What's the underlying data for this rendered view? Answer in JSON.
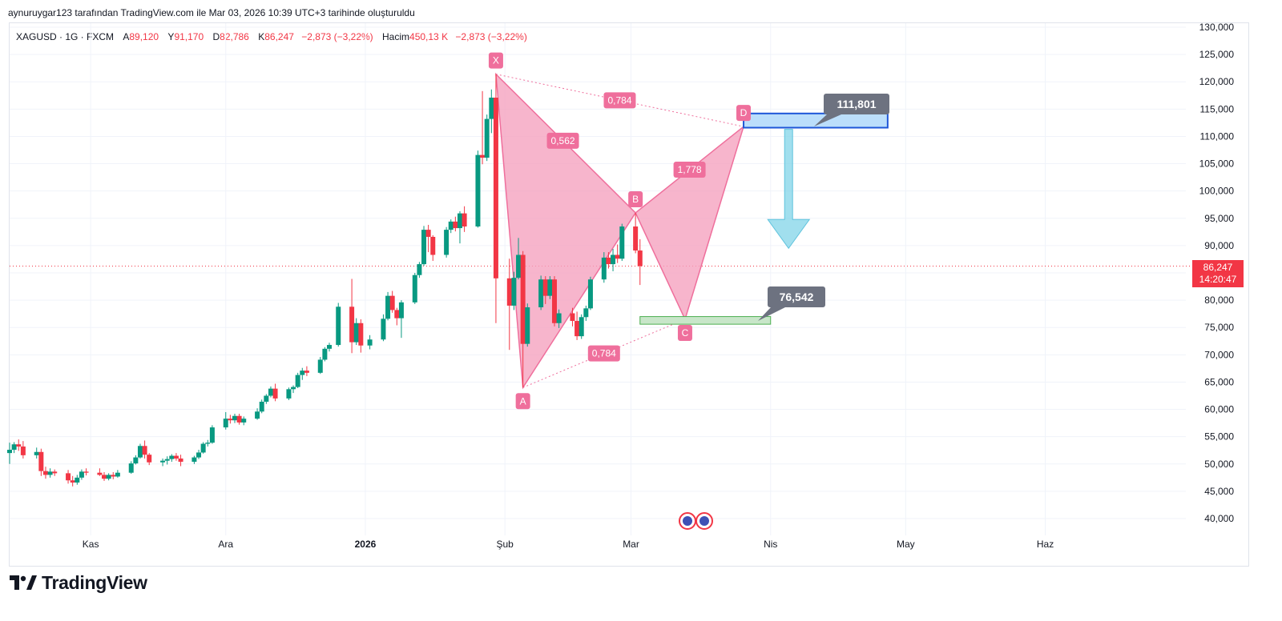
{
  "caption": "aynuruygar123 tarafından TradingView.com ile Mar 03, 2026 10:39 UTC+3 tarihinde oluşturuldu",
  "legend": {
    "symbol": "XAGUSD · 1G · FXCM",
    "a_label": "A",
    "a_value": "89,120",
    "y_label": "Y",
    "y_value": "91,170",
    "d_label": "D",
    "d_value": "82,786",
    "k_label": "K",
    "k_value": "86,247",
    "change": "−2,873 (−3,22%)",
    "volume_label": "Hacim",
    "volume_value": "450,13 K",
    "volume_change": "−2,873 (−3,22%)"
  },
  "price_badge": {
    "price": "86,247",
    "countdown": "14:20:47"
  },
  "brand": {
    "name": "TradingView"
  },
  "colors": {
    "up": "#089981",
    "down": "#f23645",
    "pattern_fill": "#f5a3bf",
    "pattern_line": "#ef6f9c",
    "label_bg": "#ef6f9c",
    "callout_bg": "#6d7280",
    "buy_zone": "#c8e6c9",
    "sell_zone": "#bbdefb",
    "arrow": "#81d4e8"
  },
  "chart_data": {
    "type": "candlestick",
    "symbol": "XAGUSD",
    "interval": "1G",
    "y_axis": {
      "min": 40,
      "max": 130,
      "ticks": [
        40,
        45,
        50,
        55,
        60,
        65,
        70,
        75,
        80,
        85,
        90,
        95,
        100,
        105,
        110,
        115,
        120,
        125,
        130
      ],
      "tick_labels": [
        "40,000",
        "45,000",
        "50,000",
        "55,000",
        "60,000",
        "65,000",
        "70,000",
        "75,000",
        "80,000",
        "85,000",
        "90,000",
        "95,000",
        "100,000",
        "105,000",
        "110,000",
        "115,000",
        "120,000",
        "125,000",
        "130,000"
      ]
    },
    "x_axis": {
      "start": "2025-10-14",
      "end": "2026-07-04",
      "ticks": [
        {
          "date": "2025-11-01",
          "label": "Kas",
          "bold": false
        },
        {
          "date": "2025-12-01",
          "label": "Ara",
          "bold": false
        },
        {
          "date": "2026-01-01",
          "label": "2026",
          "bold": true
        },
        {
          "date": "2026-02-01",
          "label": "Şub",
          "bold": false
        },
        {
          "date": "2026-03-01",
          "label": "Mar",
          "bold": false
        },
        {
          "date": "2026-04-01",
          "label": "Nis",
          "bold": false
        },
        {
          "date": "2026-05-01",
          "label": "May",
          "bold": false
        },
        {
          "date": "2026-06-01",
          "label": "Haz",
          "bold": false
        }
      ]
    },
    "last_price": 86.247,
    "candles": [
      {
        "date": "2025-10-14",
        "o": 52.0,
        "h": 53.9,
        "l": 50.0,
        "c": 52.6
      },
      {
        "date": "2025-10-15",
        "o": 52.6,
        "h": 54.0,
        "l": 52.0,
        "c": 53.6
      },
      {
        "date": "2025-10-16",
        "o": 53.6,
        "h": 54.5,
        "l": 52.4,
        "c": 53.2
      },
      {
        "date": "2025-10-17",
        "o": 53.2,
        "h": 54.2,
        "l": 51.0,
        "c": 51.6
      },
      {
        "date": "2025-10-20",
        "o": 51.6,
        "h": 53.0,
        "l": 51.0,
        "c": 52.2
      },
      {
        "date": "2025-10-21",
        "o": 52.2,
        "h": 52.8,
        "l": 47.8,
        "c": 48.7
      },
      {
        "date": "2025-10-22",
        "o": 48.7,
        "h": 49.5,
        "l": 47.3,
        "c": 48.0
      },
      {
        "date": "2025-10-23",
        "o": 48.0,
        "h": 49.2,
        "l": 47.5,
        "c": 48.6
      },
      {
        "date": "2025-10-24",
        "o": 48.6,
        "h": 49.0,
        "l": 47.8,
        "c": 48.3
      },
      {
        "date": "2025-10-27",
        "o": 48.3,
        "h": 48.9,
        "l": 46.4,
        "c": 47.0
      },
      {
        "date": "2025-10-28",
        "o": 47.0,
        "h": 47.8,
        "l": 45.9,
        "c": 46.6
      },
      {
        "date": "2025-10-29",
        "o": 46.6,
        "h": 48.0,
        "l": 46.2,
        "c": 47.5
      },
      {
        "date": "2025-10-30",
        "o": 47.5,
        "h": 49.0,
        "l": 47.1,
        "c": 48.6
      },
      {
        "date": "2025-10-31",
        "o": 48.6,
        "h": 49.2,
        "l": 47.9,
        "c": 48.4
      },
      {
        "date": "2025-11-03",
        "o": 48.4,
        "h": 49.2,
        "l": 47.8,
        "c": 48.0
      },
      {
        "date": "2025-11-04",
        "o": 48.0,
        "h": 48.5,
        "l": 46.9,
        "c": 47.3
      },
      {
        "date": "2025-11-05",
        "o": 47.3,
        "h": 48.3,
        "l": 47.0,
        "c": 48.0
      },
      {
        "date": "2025-11-06",
        "o": 48.0,
        "h": 48.5,
        "l": 47.2,
        "c": 47.7
      },
      {
        "date": "2025-11-07",
        "o": 47.7,
        "h": 48.9,
        "l": 47.5,
        "c": 48.4
      },
      {
        "date": "2025-11-10",
        "o": 48.4,
        "h": 50.5,
        "l": 48.2,
        "c": 50.1
      },
      {
        "date": "2025-11-11",
        "o": 50.1,
        "h": 51.6,
        "l": 49.9,
        "c": 51.2
      },
      {
        "date": "2025-11-12",
        "o": 51.2,
        "h": 53.7,
        "l": 51.0,
        "c": 53.3
      },
      {
        "date": "2025-11-13",
        "o": 53.3,
        "h": 54.3,
        "l": 51.0,
        "c": 51.7
      },
      {
        "date": "2025-11-14",
        "o": 51.7,
        "h": 52.0,
        "l": 49.8,
        "c": 50.3
      },
      {
        "date": "2025-11-17",
        "o": 50.3,
        "h": 51.0,
        "l": 49.6,
        "c": 50.6
      },
      {
        "date": "2025-11-18",
        "o": 50.6,
        "h": 51.4,
        "l": 49.9,
        "c": 50.9
      },
      {
        "date": "2025-11-19",
        "o": 50.9,
        "h": 51.8,
        "l": 50.4,
        "c": 51.5
      },
      {
        "date": "2025-11-20",
        "o": 51.5,
        "h": 52.0,
        "l": 50.6,
        "c": 51.0
      },
      {
        "date": "2025-11-21",
        "o": 51.0,
        "h": 51.7,
        "l": 49.6,
        "c": 50.4
      },
      {
        "date": "2025-11-24",
        "o": 50.4,
        "h": 51.5,
        "l": 50.0,
        "c": 51.2
      },
      {
        "date": "2025-11-25",
        "o": 51.2,
        "h": 52.6,
        "l": 50.9,
        "c": 52.1
      },
      {
        "date": "2025-11-26",
        "o": 52.1,
        "h": 54.0,
        "l": 51.9,
        "c": 53.7
      },
      {
        "date": "2025-11-27",
        "o": 53.7,
        "h": 54.4,
        "l": 53.2,
        "c": 53.9
      },
      {
        "date": "2025-11-28",
        "o": 53.9,
        "h": 57.1,
        "l": 53.7,
        "c": 56.7
      },
      {
        "date": "2025-12-01",
        "o": 56.7,
        "h": 59.5,
        "l": 56.3,
        "c": 58.3
      },
      {
        "date": "2025-12-02",
        "o": 58.3,
        "h": 59.0,
        "l": 57.4,
        "c": 58.0
      },
      {
        "date": "2025-12-03",
        "o": 58.0,
        "h": 59.2,
        "l": 57.5,
        "c": 58.8
      },
      {
        "date": "2025-12-04",
        "o": 58.8,
        "h": 59.2,
        "l": 57.2,
        "c": 57.6
      },
      {
        "date": "2025-12-05",
        "o": 57.6,
        "h": 58.7,
        "l": 57.1,
        "c": 58.3
      },
      {
        "date": "2025-12-08",
        "o": 58.3,
        "h": 60.2,
        "l": 58.1,
        "c": 59.6
      },
      {
        "date": "2025-12-09",
        "o": 59.6,
        "h": 61.8,
        "l": 59.3,
        "c": 61.4
      },
      {
        "date": "2025-12-10",
        "o": 61.4,
        "h": 62.8,
        "l": 61.0,
        "c": 62.5
      },
      {
        "date": "2025-12-11",
        "o": 62.5,
        "h": 64.2,
        "l": 62.2,
        "c": 63.8
      },
      {
        "date": "2025-12-12",
        "o": 63.8,
        "h": 64.7,
        "l": 61.5,
        "c": 62.0
      },
      {
        "date": "2025-12-15",
        "o": 62.0,
        "h": 64.0,
        "l": 61.7,
        "c": 63.7
      },
      {
        "date": "2025-12-16",
        "o": 63.7,
        "h": 64.4,
        "l": 63.0,
        "c": 64.1
      },
      {
        "date": "2025-12-17",
        "o": 64.1,
        "h": 66.7,
        "l": 63.9,
        "c": 66.3
      },
      {
        "date": "2025-12-18",
        "o": 66.3,
        "h": 67.6,
        "l": 65.4,
        "c": 67.1
      },
      {
        "date": "2025-12-19",
        "o": 67.1,
        "h": 67.9,
        "l": 66.1,
        "c": 66.7
      },
      {
        "date": "2025-12-22",
        "o": 66.7,
        "h": 69.6,
        "l": 66.5,
        "c": 69.1
      },
      {
        "date": "2025-12-23",
        "o": 69.1,
        "h": 71.4,
        "l": 68.8,
        "c": 71.1
      },
      {
        "date": "2025-12-24",
        "o": 71.1,
        "h": 72.2,
        "l": 70.6,
        "c": 71.8
      },
      {
        "date": "2025-12-26",
        "o": 71.8,
        "h": 79.5,
        "l": 71.5,
        "c": 78.8
      },
      {
        "date": "2025-12-29",
        "o": 78.8,
        "h": 83.9,
        "l": 70.3,
        "c": 72.3
      },
      {
        "date": "2025-12-30",
        "o": 72.3,
        "h": 76.7,
        "l": 71.8,
        "c": 75.8
      },
      {
        "date": "2025-12-31",
        "o": 75.8,
        "h": 76.5,
        "l": 70.4,
        "c": 71.7
      },
      {
        "date": "2026-01-02",
        "o": 71.7,
        "h": 73.6,
        "l": 71.0,
        "c": 72.8
      },
      {
        "date": "2026-01-05",
        "o": 72.8,
        "h": 77.4,
        "l": 72.5,
        "c": 76.6
      },
      {
        "date": "2026-01-06",
        "o": 76.6,
        "h": 81.5,
        "l": 76.3,
        "c": 80.8
      },
      {
        "date": "2026-01-07",
        "o": 80.8,
        "h": 81.7,
        "l": 77.7,
        "c": 78.2
      },
      {
        "date": "2026-01-08",
        "o": 78.2,
        "h": 78.6,
        "l": 75.4,
        "c": 76.7
      },
      {
        "date": "2026-01-09",
        "o": 76.7,
        "h": 80.0,
        "l": 73.1,
        "c": 79.6
      },
      {
        "date": "2026-01-12",
        "o": 79.6,
        "h": 85.0,
        "l": 79.3,
        "c": 84.6
      },
      {
        "date": "2026-01-13",
        "o": 84.6,
        "h": 87.0,
        "l": 84.1,
        "c": 86.6
      },
      {
        "date": "2026-01-14",
        "o": 86.6,
        "h": 93.6,
        "l": 86.3,
        "c": 92.9
      },
      {
        "date": "2026-01-15",
        "o": 92.9,
        "h": 93.8,
        "l": 88.8,
        "c": 91.6
      },
      {
        "date": "2026-01-16",
        "o": 91.6,
        "h": 91.9,
        "l": 87.2,
        "c": 88.3
      },
      {
        "date": "2026-01-19",
        "o": 88.3,
        "h": 93.4,
        "l": 87.8,
        "c": 92.9
      },
      {
        "date": "2026-01-20",
        "o": 92.9,
        "h": 94.8,
        "l": 92.3,
        "c": 94.4
      },
      {
        "date": "2026-01-21",
        "o": 94.4,
        "h": 95.3,
        "l": 92.6,
        "c": 93.2
      },
      {
        "date": "2026-01-22",
        "o": 93.2,
        "h": 96.3,
        "l": 90.4,
        "c": 95.9
      },
      {
        "date": "2026-01-23",
        "o": 95.9,
        "h": 97.2,
        "l": 92.5,
        "c": 93.5
      },
      {
        "date": "2026-01-26",
        "o": 93.5,
        "h": 107.4,
        "l": 93.3,
        "c": 106.6
      },
      {
        "date": "2026-01-27",
        "o": 106.6,
        "h": 118.3,
        "l": 104.9,
        "c": 106.1
      },
      {
        "date": "2026-01-28",
        "o": 106.1,
        "h": 114.0,
        "l": 105.5,
        "c": 113.2
      },
      {
        "date": "2026-01-29",
        "o": 113.2,
        "h": 118.6,
        "l": 110.6,
        "c": 117.1
      },
      {
        "date": "2026-01-30",
        "o": 117.1,
        "h": 121.4,
        "l": 75.8,
        "c": 84.0
      },
      {
        "date": "2026-02-02",
        "o": 84.0,
        "h": 87.6,
        "l": 70.9,
        "c": 79.0
      },
      {
        "date": "2026-02-03",
        "o": 79.0,
        "h": 85.2,
        "l": 78.2,
        "c": 84.1
      },
      {
        "date": "2026-02-04",
        "o": 84.1,
        "h": 91.4,
        "l": 83.8,
        "c": 88.3
      },
      {
        "date": "2026-02-05",
        "o": 88.3,
        "h": 89.0,
        "l": 64.0,
        "c": 72.0
      },
      {
        "date": "2026-02-06",
        "o": 72.0,
        "h": 79.4,
        "l": 71.5,
        "c": 78.7
      },
      {
        "date": "2026-02-09",
        "o": 78.7,
        "h": 84.5,
        "l": 78.2,
        "c": 83.8
      },
      {
        "date": "2026-02-10",
        "o": 83.8,
        "h": 84.4,
        "l": 79.3,
        "c": 80.8
      },
      {
        "date": "2026-02-11",
        "o": 80.8,
        "h": 84.4,
        "l": 80.2,
        "c": 83.8
      },
      {
        "date": "2026-02-12",
        "o": 83.8,
        "h": 84.4,
        "l": 75.2,
        "c": 75.8
      },
      {
        "date": "2026-02-13",
        "o": 75.8,
        "h": 78.3,
        "l": 74.9,
        "c": 77.6
      },
      {
        "date": "2026-02-16",
        "o": 77.6,
        "h": 78.6,
        "l": 75.2,
        "c": 76.2
      },
      {
        "date": "2026-02-17",
        "o": 76.2,
        "h": 77.9,
        "l": 72.7,
        "c": 73.4
      },
      {
        "date": "2026-02-18",
        "o": 73.4,
        "h": 77.4,
        "l": 72.9,
        "c": 76.9
      },
      {
        "date": "2026-02-19",
        "o": 76.9,
        "h": 79.0,
        "l": 76.2,
        "c": 78.5
      },
      {
        "date": "2026-02-20",
        "o": 78.5,
        "h": 84.3,
        "l": 78.2,
        "c": 83.8
      },
      {
        "date": "2026-02-23",
        "o": 83.8,
        "h": 88.8,
        "l": 83.2,
        "c": 87.8
      },
      {
        "date": "2026-02-24",
        "o": 87.8,
        "h": 88.8,
        "l": 85.8,
        "c": 86.6
      },
      {
        "date": "2026-02-25",
        "o": 86.6,
        "h": 89.4,
        "l": 85.3,
        "c": 88.3
      },
      {
        "date": "2026-02-26",
        "o": 88.3,
        "h": 90.2,
        "l": 86.8,
        "c": 87.6
      },
      {
        "date": "2026-02-27",
        "o": 87.6,
        "h": 94.0,
        "l": 87.2,
        "c": 93.5
      },
      {
        "date": "2026-03-02",
        "o": 93.5,
        "h": 96.0,
        "l": 88.6,
        "c": 89.1
      },
      {
        "date": "2026-03-03",
        "o": 89.1,
        "h": 91.17,
        "l": 82.786,
        "c": 86.247
      }
    ],
    "pattern": {
      "name": "XABCD",
      "points": [
        {
          "label": "X",
          "date": "2026-01-30",
          "price": 121.4
        },
        {
          "label": "A",
          "date": "2026-02-05",
          "price": 64.0
        },
        {
          "label": "B",
          "date": "2026-03-02",
          "price": 96.0
        },
        {
          "label": "C",
          "date": "2026-03-13",
          "price": 76.5
        },
        {
          "label": "D",
          "date": "2026-03-26",
          "price": 111.8
        }
      ],
      "ratios": [
        {
          "label": "0,562",
          "between": "X-B"
        },
        {
          "label": "0,784",
          "between": "A-C"
        },
        {
          "label": "1,778",
          "between": "B-D"
        },
        {
          "label": "0,784",
          "between": "X-D"
        }
      ]
    },
    "zones": [
      {
        "name": "buy-zone",
        "price_top": 77.0,
        "price_bottom": 75.6,
        "date_start": "2026-03-03",
        "date_end": "2026-04-01",
        "callout": "76,542"
      },
      {
        "name": "sell-zone",
        "price_top": 114.2,
        "price_bottom": 111.6,
        "date_start": "2026-03-26",
        "date_end": "2026-04-27",
        "callout": "111,801"
      }
    ],
    "arrow": {
      "date": "2026-04-05",
      "from_price": 111.3,
      "to_price": 89.5
    }
  }
}
